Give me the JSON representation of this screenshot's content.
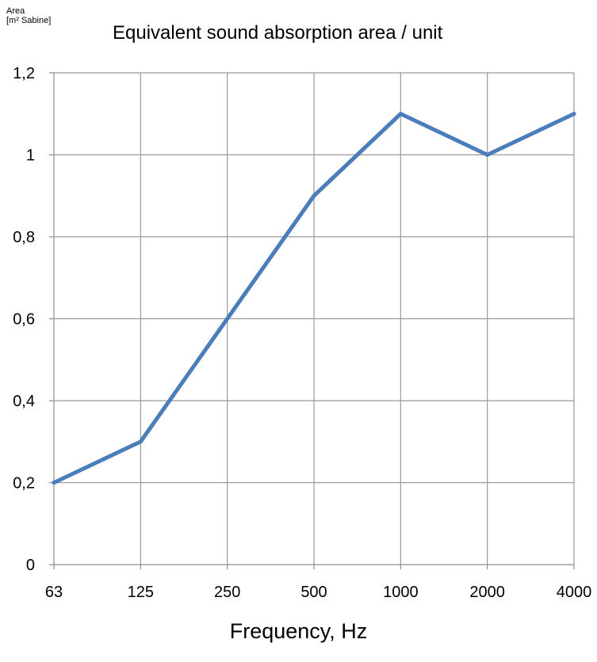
{
  "chart_data": {
    "type": "line",
    "title": "Equivalent sound absorption area / unit",
    "ylabel_lines": [
      "Area",
      "[m² Sabine]"
    ],
    "xlabel": "Frequency, Hz",
    "categories": [
      "63",
      "125",
      "250",
      "500",
      "1000",
      "2000",
      "4000"
    ],
    "series": [
      {
        "values": [
          0.2,
          0.3,
          0.6,
          0.9,
          1.1,
          1.0,
          1.1
        ],
        "color": "#4a7ebb"
      }
    ],
    "ylim": [
      0,
      1.2
    ],
    "yticks": [
      0,
      0.2,
      0.4,
      0.6,
      0.8,
      1.0,
      1.2
    ],
    "ytick_labels": [
      "0",
      "0,2",
      "0,4",
      "0,6",
      "0,8",
      "1",
      "1,2"
    ],
    "grid": true,
    "gridline_color": "#9a9a9a"
  }
}
